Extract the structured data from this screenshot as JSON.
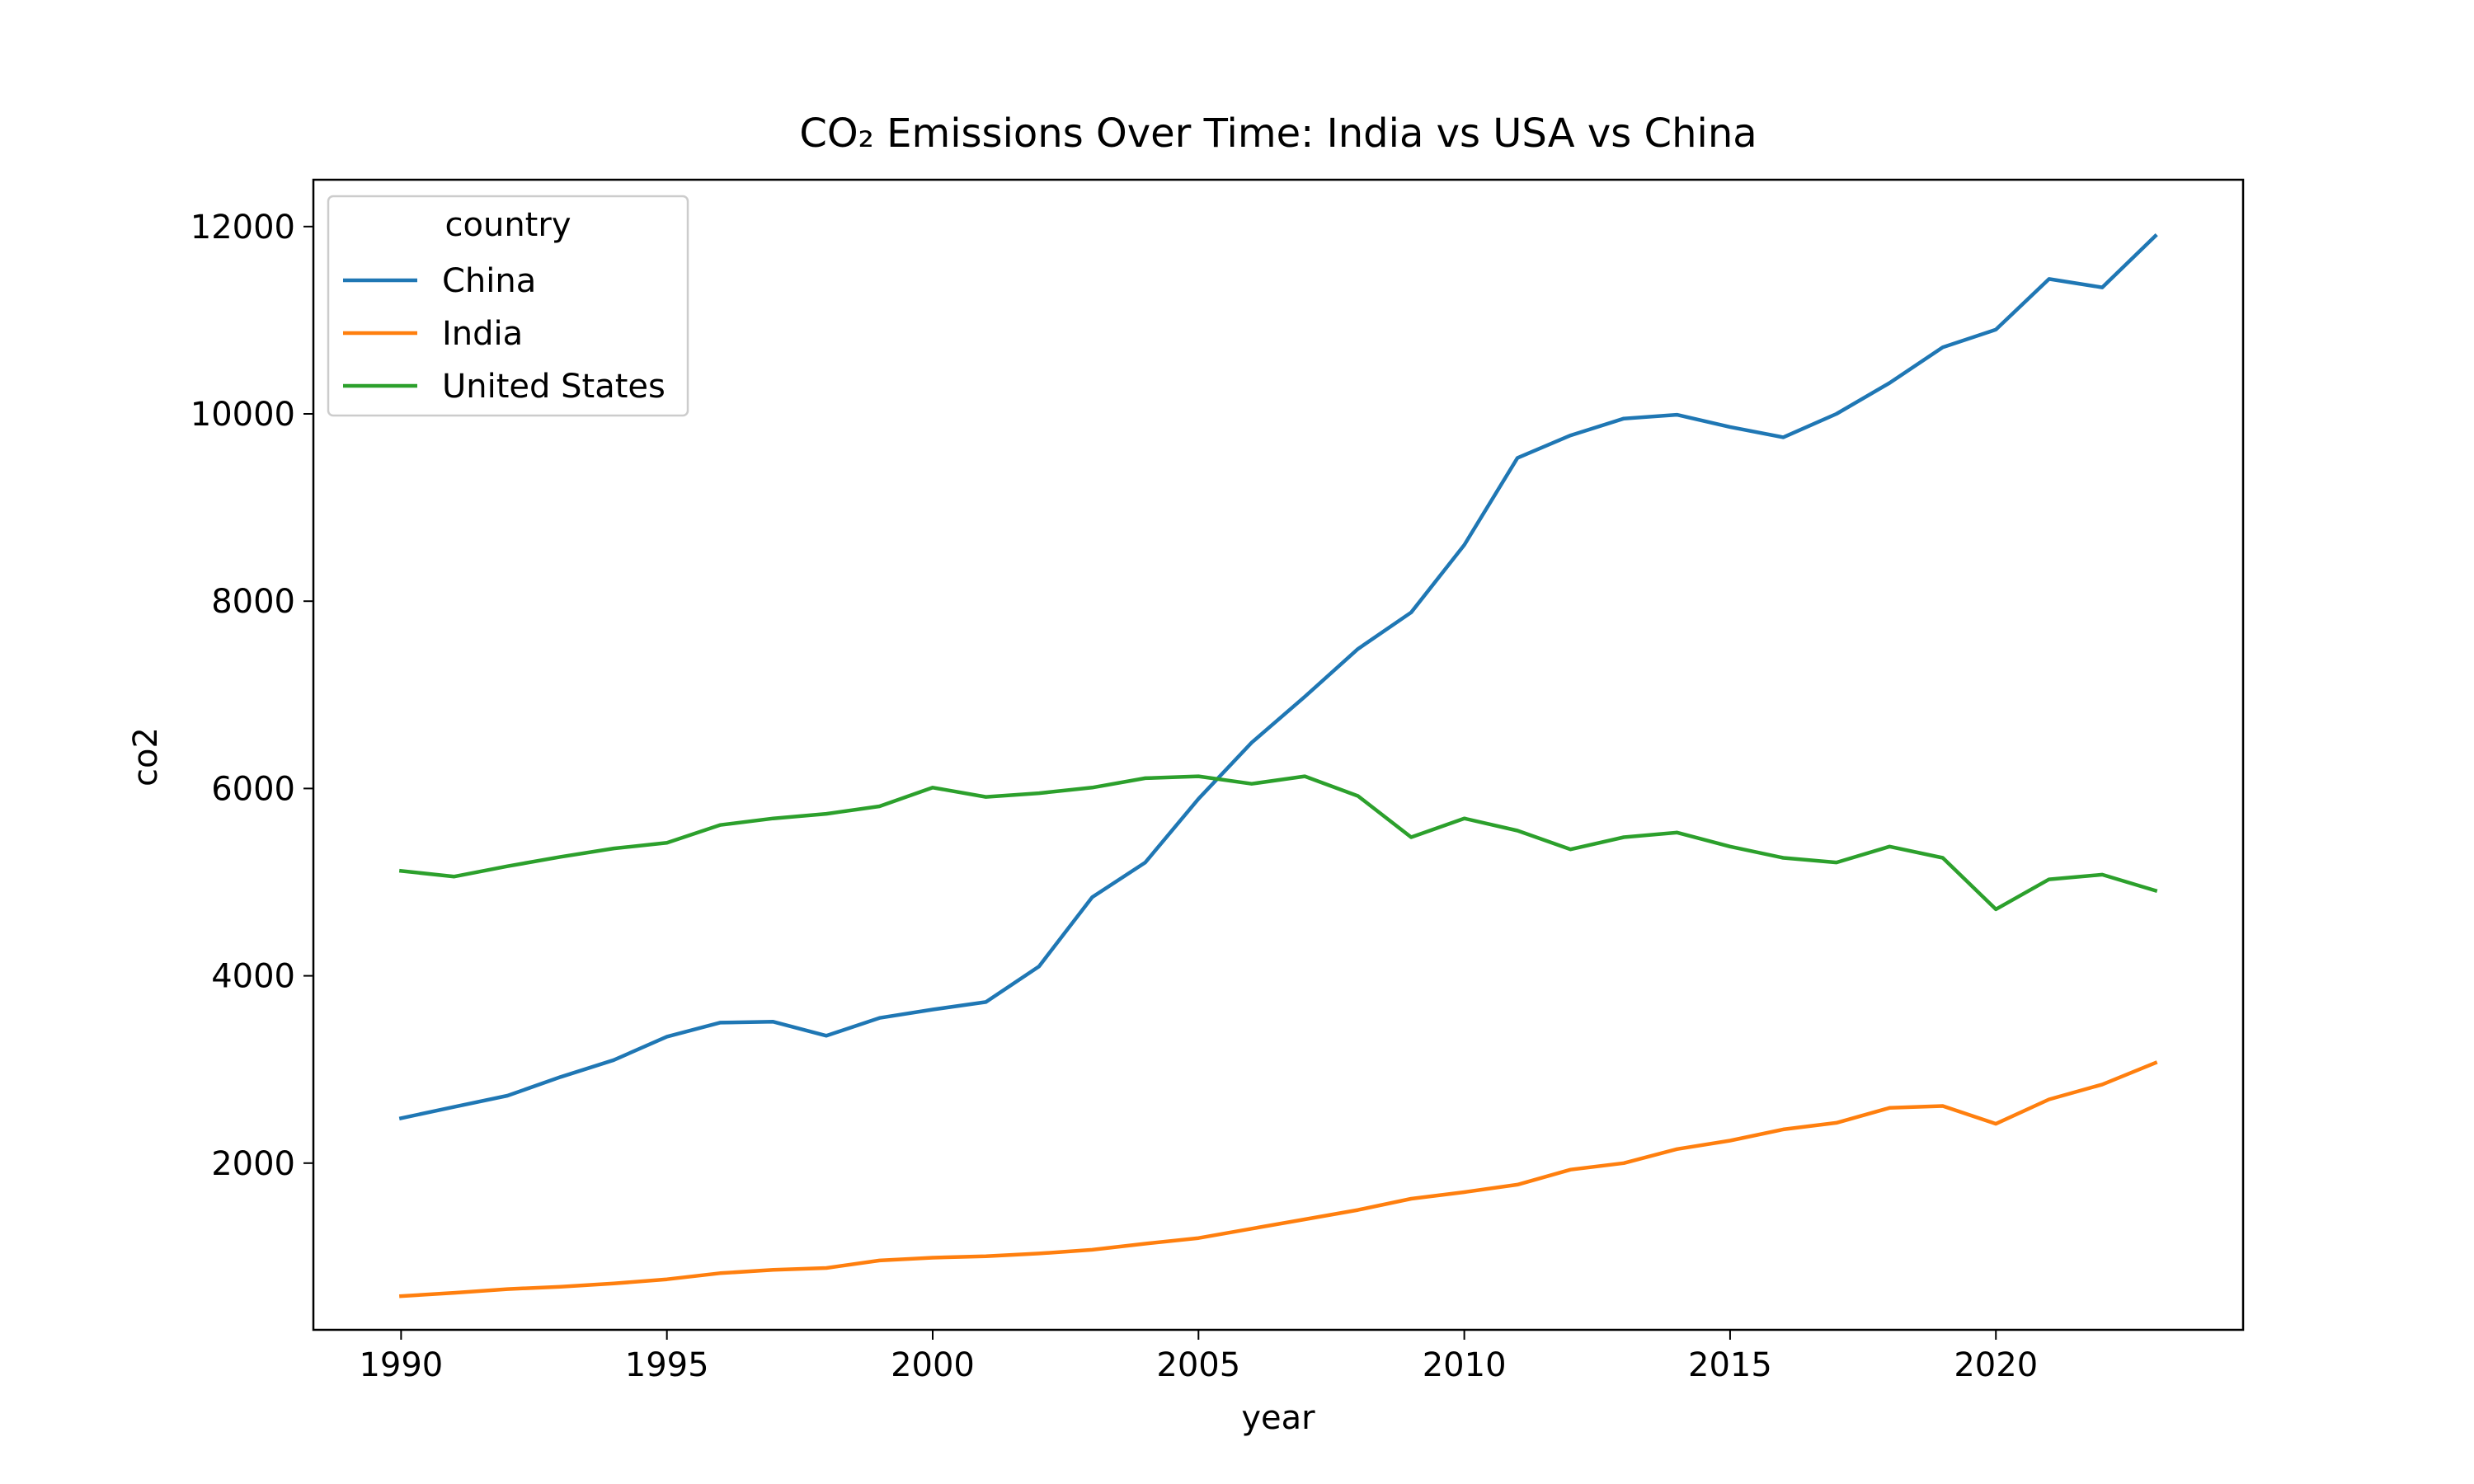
{
  "chart_data": {
    "type": "line",
    "title": "CO₂ Emissions Over Time: India vs USA vs China",
    "xlabel": "year",
    "ylabel": "co2",
    "xlim": [
      1988.35,
      2024.65
    ],
    "ylim": [
      220,
      12500
    ],
    "xticks": [
      1990,
      1995,
      2000,
      2005,
      2010,
      2015,
      2020
    ],
    "yticks": [
      2000,
      4000,
      6000,
      8000,
      10000,
      12000
    ],
    "grid": false,
    "legend": {
      "title": "country",
      "position": "top-left"
    },
    "x": [
      1990,
      1991,
      1992,
      1993,
      1994,
      1995,
      1996,
      1997,
      1998,
      1999,
      2000,
      2001,
      2002,
      2003,
      2004,
      2005,
      2006,
      2007,
      2008,
      2009,
      2010,
      2011,
      2012,
      2013,
      2014,
      2015,
      2016,
      2017,
      2018,
      2019,
      2020,
      2021,
      2022,
      2023
    ],
    "series": [
      {
        "name": "China",
        "color": "#1f77b4",
        "values": [
          2480,
          2600,
          2720,
          2920,
          3100,
          3350,
          3500,
          3510,
          3360,
          3550,
          3640,
          3720,
          4100,
          4840,
          5210,
          5890,
          6490,
          6980,
          7490,
          7880,
          8600,
          9530,
          9770,
          9950,
          9990,
          9860,
          9750,
          10000,
          10330,
          10710,
          10900,
          11440,
          11350,
          11900
        ]
      },
      {
        "name": "India",
        "color": "#ff7f0e",
        "values": [
          580,
          615,
          655,
          680,
          715,
          760,
          825,
          860,
          880,
          960,
          990,
          1005,
          1035,
          1075,
          1140,
          1200,
          1300,
          1400,
          1500,
          1620,
          1690,
          1770,
          1930,
          2000,
          2150,
          2240,
          2360,
          2430,
          2590,
          2610,
          2420,
          2680,
          2840,
          3070
        ]
      },
      {
        "name": "United States",
        "color": "#2ca02c",
        "values": [
          5120,
          5060,
          5170,
          5270,
          5360,
          5420,
          5610,
          5680,
          5730,
          5810,
          6010,
          5910,
          5950,
          6010,
          6110,
          6130,
          6050,
          6130,
          5920,
          5480,
          5680,
          5550,
          5350,
          5480,
          5530,
          5380,
          5260,
          5210,
          5380,
          5260,
          4710,
          5030,
          5080,
          4910
        ]
      }
    ]
  }
}
